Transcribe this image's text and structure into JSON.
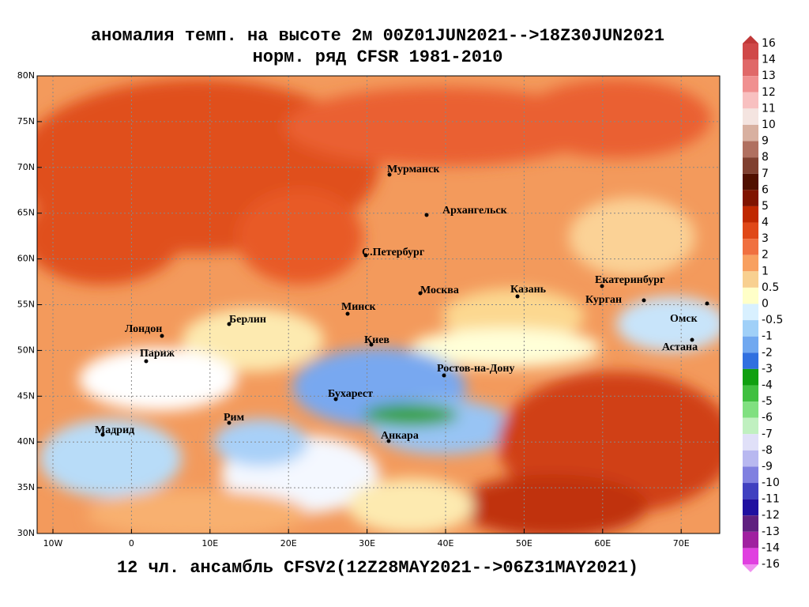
{
  "header": {
    "title": "аномалия темп. на высоте 2м 00Z01JUN2021-->18Z30JUN2021",
    "subtitle": "норм. ряд CFSR 1981-2010"
  },
  "map": {
    "lat_labels": [
      "80N",
      "75N",
      "70N",
      "65N",
      "60N",
      "55N",
      "50N",
      "45N",
      "40N",
      "35N",
      "30N"
    ],
    "lon_labels": [
      "10W",
      "0",
      "10E",
      "20E",
      "30E",
      "40E",
      "50E",
      "60E",
      "70E"
    ],
    "cities": [
      "Мурманск",
      "Архангельск",
      "С.Петербург",
      "Москва",
      "Казань",
      "Екатеринбург",
      "Курган",
      "Омск",
      "Астана",
      "Минск",
      "Берлин",
      "Лондон",
      "Париж",
      "Киев",
      "Ростов-на-Дону",
      "Бухарест",
      "Рим",
      "Мадрид",
      "Анкара"
    ]
  },
  "colorbar": {
    "levels": [
      16,
      14,
      13,
      12,
      11,
      10,
      9,
      8,
      7,
      6,
      5,
      4,
      3,
      2,
      1,
      0.5,
      0,
      -0.5,
      -1,
      -2,
      -3,
      -4,
      -5,
      -6,
      -7,
      -8,
      -9,
      -10,
      -11,
      -12,
      -13,
      -14,
      -16
    ],
    "colors": [
      "#c03838",
      "#d04848",
      "#e06868",
      "#f09090",
      "#f8c0c0",
      "#f4e4e0",
      "#d8b0a0",
      "#b07060",
      "#804030",
      "#501000",
      "#801400",
      "#c02800",
      "#e04818",
      "#f07040",
      "#f8a060",
      "#f8d090",
      "#ffffc8",
      "#d8f0ff",
      "#a0d0f8",
      "#70a8f0",
      "#3070e0",
      "#10a010",
      "#40c040",
      "#80e080",
      "#c0f0c0",
      "#e0e0f8",
      "#b8b8f0",
      "#8080e0",
      "#4040c0",
      "#2010a0",
      "#602080",
      "#a020a0",
      "#e040e0",
      "#f090f0"
    ]
  },
  "footer": "12 чл. ансамбль CFSV2(12Z28MAY2021-->06Z31MAY2021)"
}
